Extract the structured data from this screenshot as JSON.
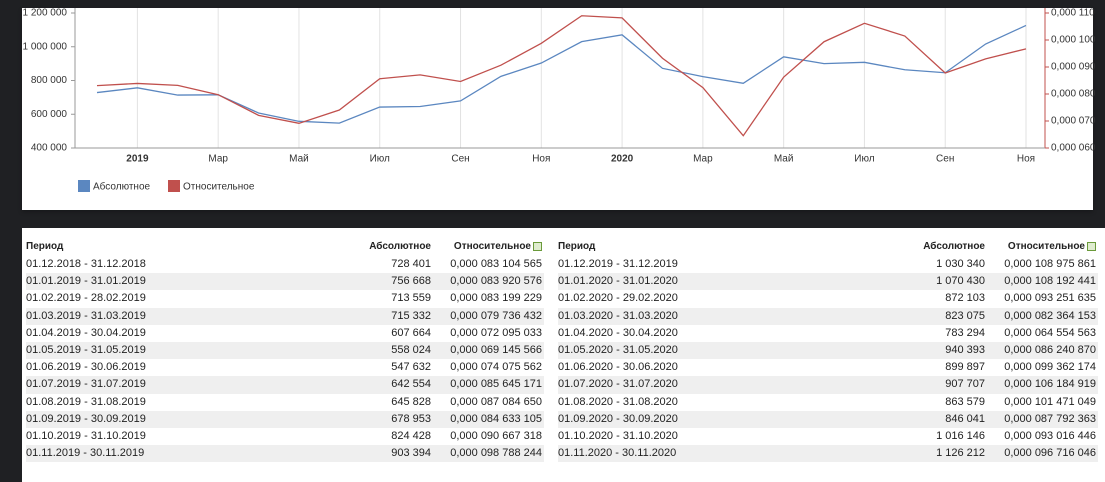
{
  "chart_data": {
    "type": "line",
    "categories": [
      null,
      "2019",
      null,
      "Мар",
      null,
      "Май",
      null,
      "Июл",
      null,
      "Сен",
      null,
      "Ноя",
      null,
      "2020",
      null,
      "Мар",
      null,
      "Май",
      null,
      "Июл",
      null,
      "Сен",
      null,
      "Ноя"
    ],
    "ylim": [
      400000,
      1200000
    ],
    "yticks": [
      {
        "value": 400000,
        "label": "400 000"
      },
      {
        "value": 600000,
        "label": "600 000"
      },
      {
        "value": 800000,
        "label": "800 000"
      },
      {
        "value": 1000000,
        "label": "1 000 000"
      },
      {
        "value": 1200000,
        "label": "1 200 000"
      }
    ],
    "y2lim": [
      6e-05,
      0.00011
    ],
    "y2ticks": [
      {
        "value": 6e-05,
        "label": "0,000 060"
      },
      {
        "value": 7e-05,
        "label": "0,000 070"
      },
      {
        "value": 8e-05,
        "label": "0,000 080"
      },
      {
        "value": 9e-05,
        "label": "0,000 090"
      },
      {
        "value": 0.0001,
        "label": "0,000 100"
      },
      {
        "value": 0.00011,
        "label": "0,000 110"
      }
    ],
    "grid": true,
    "series": [
      {
        "name": "Абсолютное",
        "color": "#5b87c0",
        "values": [
          728401,
          756668,
          713559,
          715332,
          607664,
          558024,
          547632,
          642554,
          645828,
          678953,
          824428,
          903394,
          1030340,
          1070430,
          872103,
          823075,
          783294,
          940393,
          899897,
          907707,
          863579,
          846041,
          1016146,
          1126212
        ],
        "value_labels": [
          "728 401",
          "756 668",
          "713 559",
          "715 332",
          "607 664",
          "558 024",
          "547 632",
          "642 554",
          "645 828",
          "678 953",
          "824 428",
          "903 394",
          "1 030 340",
          "1 070 430",
          "872 103",
          "823 075",
          "783 294",
          "940 393",
          "899 897",
          "907 707",
          "863 579",
          "846 041",
          "1 016 146",
          "1 126 212"
        ]
      },
      {
        "name": "Относительное",
        "color": "#c0504d",
        "axis": "y2",
        "values": [
          8.3104565e-05,
          8.3920576e-05,
          8.3199229e-05,
          7.9736432e-05,
          7.2095033e-05,
          6.9145566e-05,
          7.4075562e-05,
          8.5645171e-05,
          8.708465e-05,
          8.4633105e-05,
          9.0667318e-05,
          9.8788244e-05,
          0.000108975861,
          0.000108192441,
          9.3251635e-05,
          8.2364153e-05,
          6.4554563e-05,
          8.624087e-05,
          9.9362174e-05,
          0.000106184919,
          0.000101471049,
          8.7792363e-05,
          9.3016446e-05,
          9.6716046e-05
        ],
        "value_labels": [
          "0,000 083 104 565",
          "0,000 083 920 576",
          "0,000 083 199 229",
          "0,000 079 736 432",
          "0,000 072 095 033",
          "0,000 069 145 566",
          "0,000 074 075 562",
          "0,000 085 645 171",
          "0,000 087 084 650",
          "0,000 084 633 105",
          "0,000 090 667 318",
          "0,000 098 788 244",
          "0,000 108 975 861",
          "0,000 108 192 441",
          "0,000 093 251 635",
          "0,000 082 364 153",
          "0,000 064 554 563",
          "0,000 086 240 870",
          "0,000 099 362 174",
          "0,000 106 184 919",
          "0,000 101 471 049",
          "0,000 087 792 363",
          "0,000 093 016 446",
          "0,000 096 716 046"
        ]
      }
    ]
  },
  "table": {
    "period_header": "Период",
    "periods": [
      "01.12.2018 - 31.12.2018",
      "01.01.2019 - 31.01.2019",
      "01.02.2019 - 28.02.2019",
      "01.03.2019 - 31.03.2019",
      "01.04.2019 - 30.04.2019",
      "01.05.2019 - 31.05.2019",
      "01.06.2019 - 30.06.2019",
      "01.07.2019 - 31.07.2019",
      "01.08.2019 - 31.08.2019",
      "01.09.2019 - 30.09.2019",
      "01.10.2019 - 31.10.2019",
      "01.11.2019 - 30.11.2019",
      "01.12.2019 - 31.12.2019",
      "01.01.2020 - 31.01.2020",
      "01.02.2020 - 29.02.2020",
      "01.03.2020 - 31.03.2020",
      "01.04.2020 - 30.04.2020",
      "01.05.2020 - 31.05.2020",
      "01.06.2020 - 30.06.2020",
      "01.07.2020 - 31.07.2020",
      "01.08.2020 - 31.08.2020",
      "01.09.2020 - 30.09.2020",
      "01.10.2020 - 31.10.2020",
      "01.11.2020 - 30.11.2020"
    ]
  }
}
